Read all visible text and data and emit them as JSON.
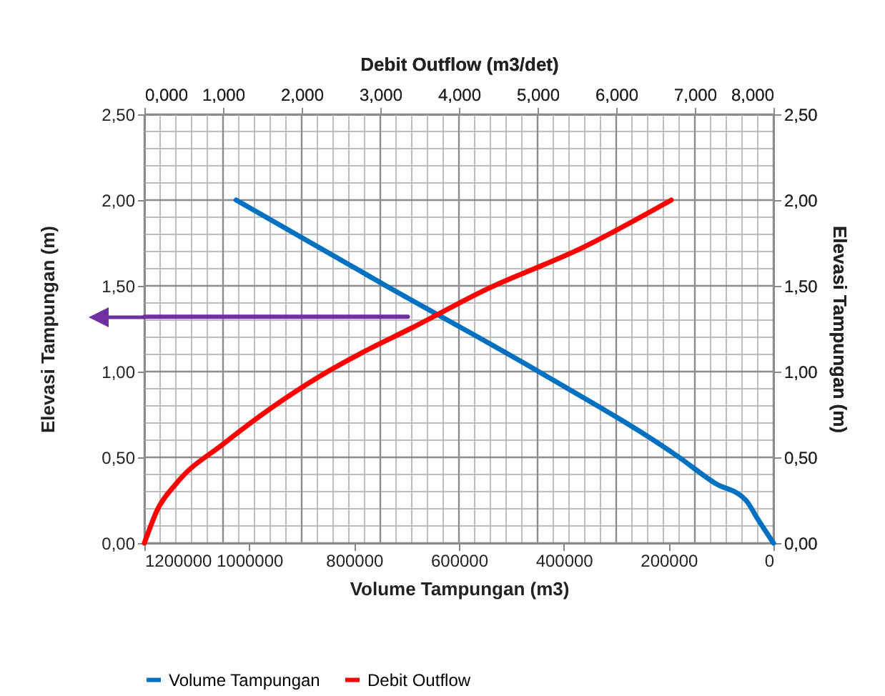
{
  "chart_data": {
    "type": "line",
    "x2label": "Debit Outflow  (m3/det)",
    "xlabel": "Volume Tampungan  (m3)",
    "ylabel": "Elevasi Tampungan (m)",
    "y2label": "Elevasi Tampungan (m)",
    "xlim": [
      1200000,
      0
    ],
    "xticks": [
      1200000,
      1000000,
      800000,
      600000,
      400000,
      200000,
      0
    ],
    "x2lim": [
      0,
      8
    ],
    "x2ticks": [
      {
        "value": 0,
        "label": "0,000"
      },
      {
        "value": 1,
        "label": "1,000"
      },
      {
        "value": 2,
        "label": "2,000"
      },
      {
        "value": 3,
        "label": "3,000"
      },
      {
        "value": 4,
        "label": "4,000"
      },
      {
        "value": 5,
        "label": "5,000"
      },
      {
        "value": 6,
        "label": "6,000"
      },
      {
        "value": 7,
        "label": "7,000"
      },
      {
        "value": 8,
        "label": "8,000"
      }
    ],
    "ylim": [
      0,
      2.5
    ],
    "yticks": [
      {
        "value": 0,
        "label": "0,00"
      },
      {
        "value": 0.5,
        "label": "0,50"
      },
      {
        "value": 1,
        "label": "1,00"
      },
      {
        "value": 1.5,
        "label": "1,50"
      },
      {
        "value": 2,
        "label": "2,00"
      },
      {
        "value": 2.5,
        "label": "2,50"
      }
    ],
    "y2lim": [
      0,
      2.5
    ],
    "y2ticks": [
      {
        "value": 0,
        "label": "0,00"
      },
      {
        "value": 0.5,
        "label": "0,50"
      },
      {
        "value": 1,
        "label": "1,00"
      },
      {
        "value": 1.5,
        "label": "1,50"
      },
      {
        "value": 2,
        "label": "2,00"
      },
      {
        "value": 2.5,
        "label": "2,50"
      }
    ],
    "grid": true,
    "legend": "bottom",
    "marker": "none",
    "line_style": "solid",
    "series": [
      {
        "name": "Volume Tampungan",
        "color": "#0070c0",
        "x": [
          1025000,
          739000,
          448000,
          180000,
          112000,
          52600,
          30000,
          0
        ],
        "values": [
          2.0,
          1.5,
          1.0,
          0.5,
          0.35,
          0.25,
          0.14,
          0
        ]
      },
      {
        "name": "Debit Outflow",
        "color": "#ff0000",
        "axis": "x2",
        "x": [
          0,
          0.16,
          0.41,
          1.01,
          1.62,
          2.22,
          2.83,
          3.38,
          4.35,
          5.56,
          6.7
        ],
        "values": [
          0,
          0.19,
          0.35,
          0.58,
          0.79,
          0.97,
          1.125,
          1.25,
          1.48,
          1.72,
          2.0
        ]
      },
      {
        "type": "line",
        "color": "#7030a0",
        "axis": "x2",
        "x": [
          0,
          3.35
        ],
        "values": [
          1.32,
          1.32
        ]
      }
    ]
  }
}
